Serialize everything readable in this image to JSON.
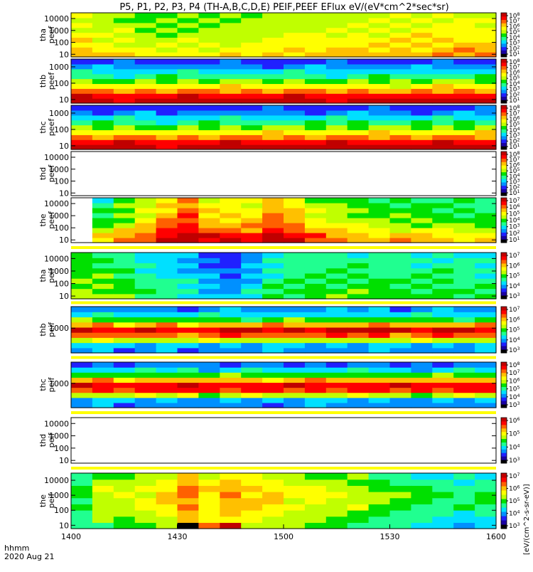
{
  "title": "P5, P1, P2, P3, P4 (TH-A,B,C,D,E) PEIF,PEEF EFlux eV/(eV*cm^2*sec*sr)",
  "footer": {
    "time_label": "hhmm",
    "date_label": "2020 Aug 21"
  },
  "colorbar_unit_label": "[eV/(cm^2-s-sr-eV)]",
  "colors": {
    "palette": [
      "#000000",
      "#1a00a0",
      "#2020ff",
      "#0090ff",
      "#00e0ff",
      "#20ff90",
      "#00e000",
      "#c0ff00",
      "#ffff00",
      "#ffc000",
      "#ff6000",
      "#ff0000",
      "#c00000"
    ],
    "fill_band": "#ffff00",
    "background": "#ffffff"
  },
  "chart_data": [
    {
      "type": "heatmap",
      "probe": "tha",
      "product": "peef",
      "ylabel": "tha\npeef",
      "yscale": "log",
      "ylim": [
        6,
        30000
      ],
      "yticks": [
        "10",
        "100",
        "1000",
        "10000"
      ],
      "zlim": [
        1,
        8
      ],
      "profile": [
        9,
        8.6,
        8.3,
        8.0,
        7.8,
        7.6,
        7.3,
        7.2,
        7.1
      ],
      "time_mod": [
        0,
        -0.3,
        -0.6,
        -0.9,
        -1.0,
        -1.0,
        -0.9,
        -0.8,
        -0.7,
        -0.5,
        -0.3,
        -0.2,
        -0.1,
        0,
        0.1,
        0.2,
        0.3,
        0.3,
        0.4,
        0.3
      ],
      "missing": []
    },
    {
      "type": "heatmap",
      "probe": "thb",
      "product": "peef",
      "ylabel": "thb\npeef",
      "yscale": "log",
      "ylim": [
        6,
        3000
      ],
      "yticks": [
        "10",
        "100",
        "1000"
      ],
      "zlim": [
        1,
        8
      ],
      "profile": [
        12,
        11,
        9.5,
        8,
        6.5,
        5,
        4,
        3,
        2.2
      ],
      "time_mod": [
        0,
        0.1,
        -0.2,
        0.1,
        0,
        0.2,
        -0.1,
        0,
        0.1,
        -0.1,
        0.2,
        0,
        -0.1,
        0.1,
        0,
        -0.2,
        0.1,
        0,
        0.1,
        0
      ],
      "missing": []
    },
    {
      "type": "heatmap",
      "probe": "thc",
      "product": "peef",
      "ylabel": "thc\npeef",
      "yscale": "log",
      "ylim": [
        6,
        3000
      ],
      "yticks": [
        "10",
        "100",
        "1000"
      ],
      "zlim": [
        1,
        8
      ],
      "profile": [
        12,
        11,
        9.5,
        8,
        6.5,
        5.2,
        4,
        3,
        2.2
      ],
      "time_mod": [
        0,
        -0.1,
        0.2,
        0,
        -0.3,
        0.1,
        0,
        0.2,
        -0.1,
        0,
        0.1,
        -0.2,
        0,
        0.1,
        0,
        0.2,
        -0.1,
        0,
        0.1,
        0
      ],
      "missing": []
    },
    {
      "type": "heatmap",
      "probe": "thd",
      "product": "peef",
      "ylabel": "thd\npeef",
      "yscale": "log",
      "ylim": [
        6,
        30000
      ],
      "yticks": [
        "10",
        "100",
        "1000",
        "10000"
      ],
      "zlim": [
        1,
        8
      ],
      "empty": true
    },
    {
      "type": "heatmap",
      "probe": "the",
      "product": "peef",
      "ylabel": "the\npeef",
      "yscale": "log",
      "ylim": [
        6,
        30000
      ],
      "yticks": [
        "10",
        "100",
        "1000",
        "10000"
      ],
      "zlim": [
        1,
        8
      ],
      "profile": [
        11,
        10.5,
        9.5,
        8.8,
        8.3,
        8.0,
        7.8,
        7.5,
        7.3
      ],
      "time_mod": [
        -2.5,
        -2.5,
        -1.5,
        -0.5,
        1.0,
        2.0,
        0.5,
        0.3,
        0.2,
        1.5,
        0.8,
        -0.5,
        -1.0,
        -1.5,
        -1.8,
        -2.0,
        -2.0,
        -2.2,
        -2.3,
        -2.4
      ],
      "missing": [
        0
      ]
    },
    {
      "type": "heatmap",
      "probe": "tha",
      "product": "peif",
      "ylabel": "tha\npeif",
      "yscale": "log",
      "ylim": [
        6,
        30000
      ],
      "yticks": [
        "10",
        "100",
        "1000",
        "10000"
      ],
      "zlim": [
        1,
        8
      ],
      "profile": [
        5.5,
        5.4,
        5.2,
        5.0,
        4.8,
        4.7,
        4.5,
        4.4,
        4.3
      ],
      "time_mod": [
        1.5,
        1.2,
        0.8,
        0,
        -0.5,
        -1.0,
        -1.8,
        -2.2,
        -1.2,
        -0.2,
        0.4,
        0.6,
        0.7,
        0.6,
        0.5,
        0.5,
        0.4,
        0.3,
        0.2,
        0.1
      ],
      "missing": []
    },
    {
      "type": "heatmap",
      "probe": "thb",
      "product": "peif",
      "ylabel": "thb\npeif",
      "yscale": "log",
      "ylim": [
        80,
        9000
      ],
      "yticks": [
        "1000"
      ],
      "zlim": [
        1,
        8
      ],
      "profile": [
        3,
        3.5,
        7,
        10,
        11.5,
        9,
        6,
        4,
        3
      ],
      "time_mod": [
        0,
        0.3,
        -0.2,
        0,
        0.2,
        -0.3,
        0,
        0.1,
        -0.1,
        0.2,
        0,
        -0.2,
        0.1,
        0,
        0.3,
        -0.1,
        0,
        0.2,
        -0.2,
        0
      ],
      "missing": []
    },
    {
      "type": "heatmap",
      "probe": "thc",
      "product": "peif",
      "ylabel": "thc\npeif",
      "yscale": "log",
      "ylim": [
        80,
        9000
      ],
      "yticks": [
        "1000"
      ],
      "zlim": [
        1,
        8
      ],
      "profile": [
        3,
        3.5,
        7,
        10.5,
        11,
        9,
        6,
        4,
        2.5
      ],
      "time_mod": [
        0,
        0.2,
        -0.3,
        0.1,
        0,
        0.3,
        -0.2,
        0,
        0.2,
        -0.1,
        0,
        0.3,
        -0.1,
        0,
        0.2,
        0,
        -0.2,
        0.1,
        0,
        0
      ],
      "missing": []
    },
    {
      "type": "heatmap",
      "probe": "thd",
      "product": "peif",
      "ylabel": "thd\npeif",
      "yscale": "log",
      "ylim": [
        6,
        30000
      ],
      "yticks": [
        "10",
        "100",
        "1000",
        "10000"
      ],
      "zlim": [
        1,
        8
      ],
      "empty": true
    },
    {
      "type": "heatmap",
      "probe": "the",
      "product": "peif",
      "ylabel": "the\npeif",
      "yscale": "log",
      "ylim": [
        6,
        30000
      ],
      "yticks": [
        "10",
        "100",
        "1000",
        "10000"
      ],
      "zlim": [
        1,
        8
      ],
      "profile": [
        5.5,
        6,
        6.5,
        7,
        7.2,
        7.3,
        7,
        6.5,
        6
      ],
      "time_mod": [
        -1.5,
        0,
        0,
        0.5,
        1.5,
        2.5,
        1,
        2,
        1.5,
        1.5,
        0.5,
        0.5,
        0,
        0,
        -0.5,
        -0.8,
        -1.5,
        -2.0,
        -1.8,
        -1.5
      ],
      "missing": [],
      "low_spots": [
        [
          5,
          0,
          0
        ],
        [
          6,
          0,
          10
        ],
        [
          7,
          0,
          12
        ]
      ]
    }
  ],
  "xaxis": {
    "ticks": [
      "1400",
      "1430",
      "1500",
      "1530",
      "1600"
    ],
    "range_hhmm": [
      "1400",
      "1600"
    ]
  },
  "colorbars": [
    {
      "ticks": [
        "10^1",
        "10^2",
        "10^3",
        "10^4",
        "10^5",
        "10^6",
        "10^7",
        "10^8"
      ]
    },
    {
      "ticks": [
        "10^1",
        "10^2",
        "10^3",
        "10^4",
        "10^5",
        "10^6",
        "10^7",
        "10^8"
      ]
    },
    {
      "ticks": [
        "10^1",
        "10^2",
        "10^3",
        "10^4",
        "10^5",
        "10^6",
        "10^7",
        "10^8"
      ]
    },
    {
      "ticks": [
        "10^1",
        "10^2",
        "10^3",
        "10^4",
        "10^5",
        "10^6",
        "10^7",
        "10^8"
      ]
    },
    {
      "ticks": [
        "10^1",
        "10^2",
        "10^3",
        "10^4",
        "10^5",
        "10^6",
        "10^7"
      ]
    },
    {
      "ticks": [
        "10^3",
        "10^4",
        "10^5",
        "10^6",
        "10^7"
      ]
    },
    {
      "ticks": [
        "10^3",
        "10^4",
        "10^5",
        "10^6",
        "10^7"
      ]
    },
    {
      "ticks": [
        "10^3",
        "10^4",
        "10^5",
        "10^6",
        "10^7",
        "10^8"
      ]
    },
    {
      "ticks": [
        "10^3",
        "10^4",
        "10^5",
        "10^6"
      ]
    },
    {
      "ticks": [
        "10^3",
        "10^4",
        "10^5",
        "10^6",
        "10^7"
      ]
    }
  ]
}
